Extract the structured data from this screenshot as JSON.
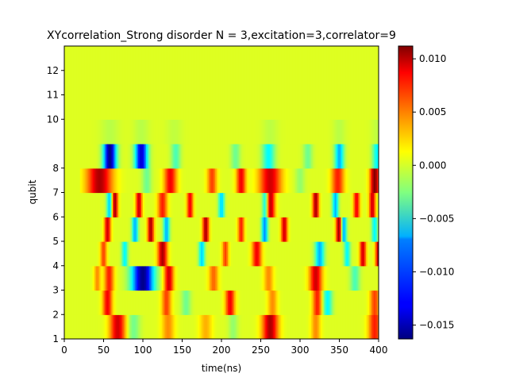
{
  "chart_data": {
    "type": "heatmap",
    "title": "XYcorrelation_Strong disorder  N =  3,excitation=3,correlator=9",
    "xlabel": "time(ns)",
    "ylabel": "qubit",
    "xlim": [
      0,
      400
    ],
    "ylim": [
      1,
      13
    ],
    "x_ticks": [
      0,
      50,
      100,
      150,
      200,
      250,
      300,
      350,
      400
    ],
    "y_ticks": [
      1,
      2,
      3,
      4,
      5,
      6,
      7,
      8,
      10,
      11,
      12
    ],
    "colormap": "jet",
    "color_range": [
      -0.0163,
      0.0112
    ],
    "colorbar_ticks": [
      {
        "value": 0.01,
        "label": "0.010"
      },
      {
        "value": 0.005,
        "label": "0.005"
      },
      {
        "value": 0.0,
        "label": "0.000"
      },
      {
        "value": -0.005,
        "label": "−0.005"
      },
      {
        "value": -0.01,
        "label": "−0.010"
      },
      {
        "value": -0.015,
        "label": "−0.015"
      }
    ],
    "colorbar_location": "right",
    "grid": false,
    "rows": [
      {
        "y": [
          1,
          2
        ],
        "features": [
          [
            68,
            10,
            0.009
          ],
          [
            132,
            8,
            0.004
          ],
          [
            262,
            10,
            0.01
          ],
          [
            395,
            8,
            0.007
          ],
          [
            180,
            8,
            0.003
          ],
          [
            320,
            6,
            0.004
          ],
          [
            88,
            8,
            -0.003
          ],
          [
            215,
            6,
            -0.002
          ]
        ]
      },
      {
        "y": [
          2,
          3
        ],
        "features": [
          [
            55,
            6,
            0.008
          ],
          [
            130,
            6,
            0.006
          ],
          [
            211,
            6,
            0.008
          ],
          [
            322,
            6,
            0.007
          ],
          [
            335,
            6,
            -0.006
          ],
          [
            395,
            6,
            0.006
          ],
          [
            155,
            6,
            -0.003
          ],
          [
            265,
            6,
            0.004
          ]
        ]
      },
      {
        "y": [
          3,
          4
        ],
        "features": [
          [
            100,
            14,
            -0.016
          ],
          [
            57,
            6,
            0.007
          ],
          [
            133,
            6,
            0.009
          ],
          [
            260,
            6,
            0.004
          ],
          [
            320,
            8,
            0.009
          ],
          [
            370,
            6,
            -0.004
          ],
          [
            190,
            6,
            0.005
          ],
          [
            42,
            4,
            0.004
          ]
        ]
      },
      {
        "y": [
          4,
          5
        ],
        "features": [
          [
            50,
            4,
            0.006
          ],
          [
            77,
            4,
            -0.006
          ],
          [
            125,
            6,
            0.01
          ],
          [
            175,
            4,
            -0.007
          ],
          [
            245,
            6,
            0.008
          ],
          [
            325,
            6,
            -0.008
          ],
          [
            380,
            4,
            0.009
          ],
          [
            360,
            4,
            -0.006
          ],
          [
            400,
            4,
            0.01
          ],
          [
            205,
            4,
            0.006
          ]
        ]
      },
      {
        "y": [
          5,
          6
        ],
        "features": [
          [
            55,
            4,
            0.009
          ],
          [
            90,
            4,
            -0.008
          ],
          [
            110,
            4,
            0.01
          ],
          [
            130,
            4,
            -0.008
          ],
          [
            180,
            4,
            0.01
          ],
          [
            255,
            4,
            -0.009
          ],
          [
            280,
            4,
            0.009
          ],
          [
            350,
            4,
            0.012
          ],
          [
            355,
            4,
            -0.01
          ],
          [
            395,
            4,
            -0.006
          ],
          [
            225,
            4,
            0.007
          ]
        ]
      },
      {
        "y": [
          6,
          7
        ],
        "features": [
          [
            64,
            4,
            0.011
          ],
          [
            58,
            4,
            -0.008
          ],
          [
            95,
            4,
            0.009
          ],
          [
            125,
            6,
            0.007
          ],
          [
            200,
            4,
            -0.007
          ],
          [
            256,
            4,
            -0.008
          ],
          [
            262,
            6,
            0.01
          ],
          [
            320,
            4,
            0.01
          ],
          [
            345,
            4,
            -0.008
          ],
          [
            372,
            4,
            0.008
          ],
          [
            392,
            4,
            0.009
          ],
          [
            160,
            4,
            0.008
          ]
        ]
      },
      {
        "y": [
          7,
          8
        ],
        "features": [
          [
            45,
            16,
            0.01
          ],
          [
            262,
            14,
            0.009
          ],
          [
            135,
            8,
            0.008
          ],
          [
            188,
            6,
            0.006
          ],
          [
            225,
            6,
            0.008
          ],
          [
            348,
            8,
            0.007
          ],
          [
            395,
            6,
            0.011
          ],
          [
            105,
            6,
            -0.003
          ],
          [
            300,
            6,
            -0.002
          ]
        ]
      },
      {
        "y": [
          8,
          9
        ],
        "features": [
          [
            58,
            8,
            -0.016
          ],
          [
            98,
            8,
            -0.014
          ],
          [
            142,
            6,
            -0.004
          ],
          [
            218,
            6,
            -0.003
          ],
          [
            260,
            8,
            -0.006
          ],
          [
            350,
            6,
            -0.008
          ],
          [
            398,
            6,
            -0.006
          ],
          [
            310,
            6,
            -0.003
          ]
        ]
      },
      {
        "y": [
          9,
          10
        ],
        "features": [
          [
            58,
            12,
            -0.001
          ],
          [
            98,
            10,
            -0.001
          ],
          [
            140,
            10,
            -0.0008
          ],
          [
            262,
            10,
            -0.0009
          ],
          [
            350,
            8,
            -0.001
          ],
          [
            398,
            8,
            -0.0008
          ]
        ]
      },
      {
        "y": [
          10,
          13
        ],
        "features": []
      }
    ]
  }
}
